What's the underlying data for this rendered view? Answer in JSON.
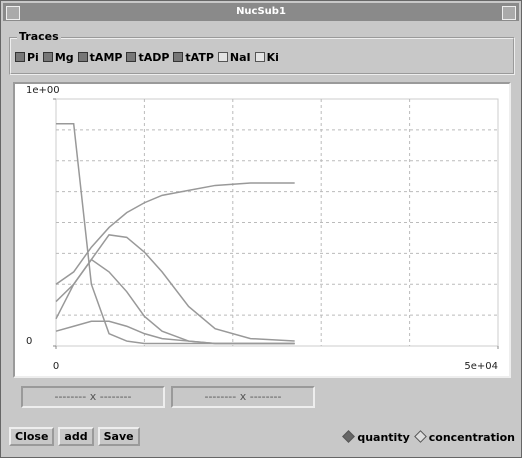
{
  "window": {
    "title": "NucSub1"
  },
  "traces": {
    "label": "Traces",
    "items": [
      {
        "label": "Pi",
        "checked": true
      },
      {
        "label": "Mg",
        "checked": true
      },
      {
        "label": "tAMP",
        "checked": true
      },
      {
        "label": "tADP",
        "checked": true
      },
      {
        "label": "tATP",
        "checked": true
      },
      {
        "label": "NaI",
        "checked": false
      },
      {
        "label": "Ki",
        "checked": false
      }
    ]
  },
  "chart_data": {
    "type": "line",
    "x": [
      0,
      2000,
      4000,
      6000,
      8000,
      10000,
      12000,
      15000,
      18000,
      22000,
      27000
    ],
    "series": [
      {
        "color": "#999999",
        "values": [
          0.9,
          0.9,
          0.25,
          0.05,
          0.02,
          0.01,
          0.01,
          0.01,
          0.01,
          0.01,
          0.01
        ]
      },
      {
        "color": "#999999",
        "values": [
          0.25,
          0.3,
          0.4,
          0.48,
          0.54,
          0.58,
          0.61,
          0.63,
          0.65,
          0.66,
          0.66
        ]
      },
      {
        "color": "#999999",
        "values": [
          0.18,
          0.25,
          0.35,
          0.45,
          0.44,
          0.38,
          0.3,
          0.16,
          0.07,
          0.03,
          0.02
        ]
      },
      {
        "color": "#999999",
        "values": [
          0.11,
          0.25,
          0.35,
          0.3,
          0.22,
          0.12,
          0.06,
          0.02,
          0.01,
          0.01,
          0.01
        ]
      },
      {
        "color": "#999999",
        "values": [
          0.06,
          0.08,
          0.1,
          0.1,
          0.08,
          0.05,
          0.03,
          0.02,
          0.01,
          0.01,
          0.01
        ]
      }
    ],
    "xlim": [
      0,
      50000
    ],
    "ylim": [
      0,
      1
    ],
    "xticks": [
      0,
      {
        "value": 50000,
        "label": "5e+04"
      }
    ],
    "yticks": [
      0,
      {
        "value": 1,
        "label": "1e+00"
      }
    ],
    "grid": true
  },
  "coords": [
    "-------- x --------",
    "-------- x --------"
  ],
  "buttons": [
    "Close",
    "add",
    "Save"
  ],
  "mode": {
    "options": [
      "quantity",
      "concentration"
    ],
    "selected": 0
  }
}
